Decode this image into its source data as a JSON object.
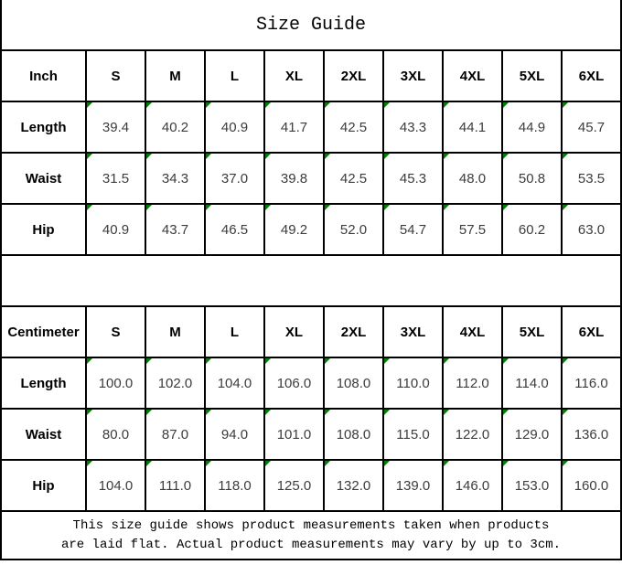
{
  "title": "Size Guide",
  "colors": {
    "flag_green": "#067d06",
    "border_black": "#000000"
  },
  "tables": [
    {
      "unit_label": "Inch",
      "sizes": [
        "S",
        "M",
        "L",
        "XL",
        "2XL",
        "3XL",
        "4XL",
        "5XL",
        "6XL"
      ],
      "rows": [
        {
          "label": "Length",
          "values": [
            "39.4",
            "40.2",
            "40.9",
            "41.7",
            "42.5",
            "43.3",
            "44.1",
            "44.9",
            "45.7"
          ]
        },
        {
          "label": "Waist",
          "values": [
            "31.5",
            "34.3",
            "37.0",
            "39.8",
            "42.5",
            "45.3",
            "48.0",
            "50.8",
            "53.5"
          ]
        },
        {
          "label": "Hip",
          "values": [
            "40.9",
            "43.7",
            "46.5",
            "49.2",
            "52.0",
            "54.7",
            "57.5",
            "60.2",
            "63.0"
          ]
        }
      ]
    },
    {
      "unit_label": "Centimeter",
      "sizes": [
        "S",
        "M",
        "L",
        "XL",
        "2XL",
        "3XL",
        "4XL",
        "5XL",
        "6XL"
      ],
      "rows": [
        {
          "label": "Length",
          "values": [
            "100.0",
            "102.0",
            "104.0",
            "106.0",
            "108.0",
            "110.0",
            "112.0",
            "114.0",
            "116.0"
          ]
        },
        {
          "label": "Waist",
          "values": [
            "80.0",
            "87.0",
            "94.0",
            "101.0",
            "108.0",
            "115.0",
            "122.0",
            "129.0",
            "136.0"
          ]
        },
        {
          "label": "Hip",
          "values": [
            "104.0",
            "111.0",
            "118.0",
            "125.0",
            "132.0",
            "139.0",
            "146.0",
            "153.0",
            "160.0"
          ]
        }
      ]
    }
  ],
  "footer": {
    "line1": "This size guide shows product measurements taken when products",
    "line2": "are laid flat. Actual product measurements may vary by up to 3cm."
  }
}
